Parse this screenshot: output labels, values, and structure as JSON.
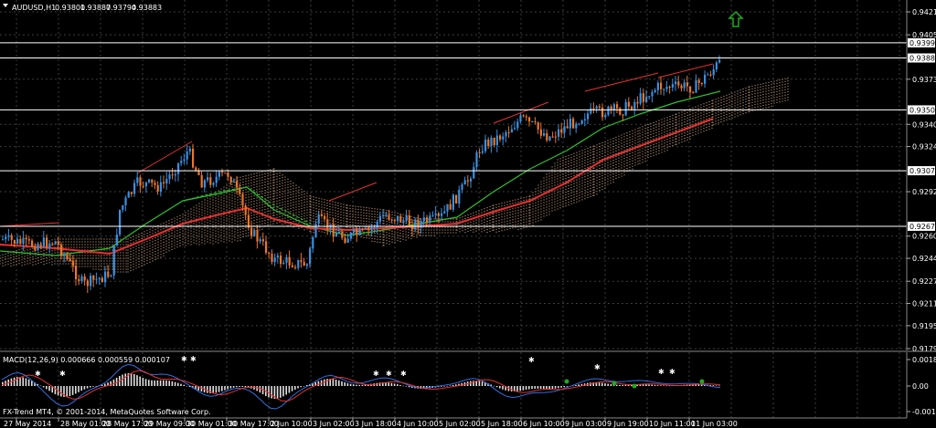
{
  "window": {
    "symbol_label": "AUDUSD,H1",
    "ohlc": [
      "0.93801",
      "0.93887",
      "0.93794",
      "0.93883"
    ],
    "watermark": "FX-Trend MT4, © 2001-2014, MetaQuotes Software Corp."
  },
  "colors": {
    "background": "#000000",
    "grid": "#3c3c3c",
    "bull_candle": "#3a8fe0",
    "bear_candle": "#e8762a",
    "ma_fast": "#2fbf2f",
    "ma_slow": "#e83030",
    "cloud": "#c8a080",
    "macd_hist": "#e0e0e0",
    "macd_main": "#2f6fe0",
    "macd_signal": "#e83030",
    "arrow_up": "#1faa1f"
  },
  "price_axis": {
    "ticks": [
      "0.94215",
      "0.94050",
      "0.93730",
      "0.93405",
      "0.93245",
      "0.92920",
      "0.92600",
      "0.92440",
      "0.92275",
      "0.92115",
      "0.91955",
      "0.91790"
    ],
    "levels": [
      {
        "label": "0.93992",
        "price": 0.93992
      },
      {
        "label": "0.93883",
        "price": 0.93883
      },
      {
        "label": "0.93509",
        "price": 0.93509
      },
      {
        "label": "0.93071",
        "price": 0.93071
      },
      {
        "label": "0.92671",
        "price": 0.92671
      }
    ]
  },
  "time_axis": {
    "labels": [
      "27 May 2014",
      "28 May 01:00",
      "28 May 17:00",
      "29 May 09:00",
      "30 May 01:00",
      "30 May 17:00",
      "2 Jun 10:00",
      "3 Jun 02:00",
      "3 Jun 18:00",
      "4 Jun 10:00",
      "5 Jun 02:00",
      "5 Jun 18:00",
      "6 Jun 10:00",
      "9 Jun 03:00",
      "9 Jun 19:00",
      "10 Jun 11:00",
      "11 Jun 03:00"
    ]
  },
  "macd": {
    "label": "MACD(12,26,9) 0.000666 0.000559 0.000107",
    "ticks": [
      "0.001824",
      "0.00",
      "-0.001595"
    ]
  },
  "signals": {
    "arrow_up_icon": "arrow-up-icon"
  }
}
